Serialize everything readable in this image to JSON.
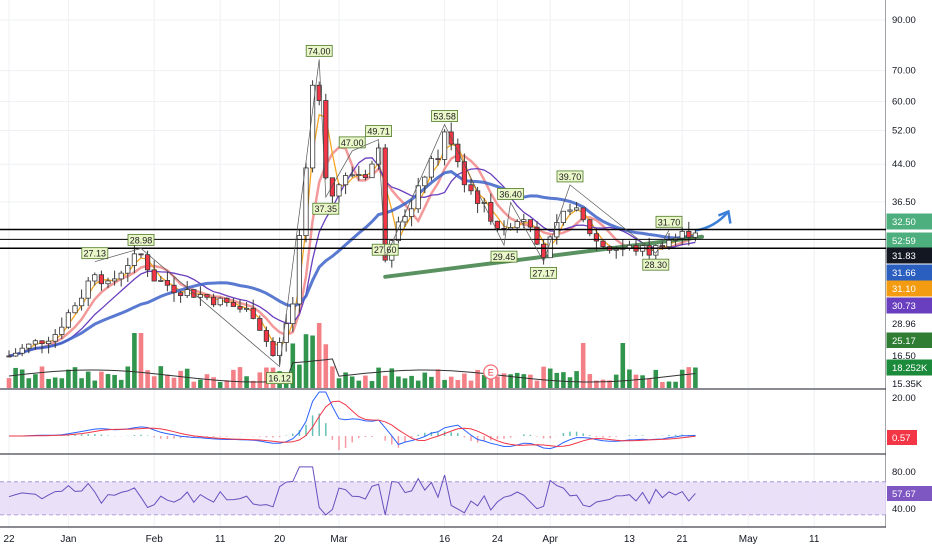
{
  "chart_data": {
    "type": "candlestick",
    "log_scale": true,
    "ylim": [
      14.5,
      100
    ],
    "x_tick_labels": [
      "22",
      "Jan",
      "Feb",
      "11",
      "20",
      "Mar",
      "16",
      "24",
      "Apr",
      "13",
      "21",
      "May",
      "11"
    ],
    "x_tick_days": [
      -9,
      0,
      13,
      23,
      32,
      41,
      57,
      65,
      73,
      85,
      93,
      103,
      113
    ],
    "y_tick_labels": [
      "90.00",
      "70.00",
      "60.00",
      "52.00",
      "44.00",
      "36.50"
    ],
    "y_ticks": [
      90,
      70,
      60,
      52,
      44,
      36.5
    ],
    "price_tags": [
      {
        "label": "32.50",
        "value": 32.5,
        "color": "#4caf7d",
        "text_color": "#ffffff"
      },
      {
        "label": "52:59",
        "value": 30.5,
        "color": "#4caf7d",
        "text_color": "#ffffff"
      },
      {
        "label": "31.83",
        "value": 31.83,
        "color": "#131722",
        "text_color": "#ffffff"
      },
      {
        "label": "31.66",
        "value": 31.66,
        "color": "#2a5ebf",
        "text_color": "#ffffff"
      },
      {
        "label": "31.10",
        "value": 31.1,
        "color": "#f39c12",
        "text_color": "#ffffff"
      },
      {
        "label": "30.73",
        "value": 30.73,
        "color": "#6a3fbf",
        "text_color": "#ffffff"
      },
      {
        "label": "28.96",
        "value": 28.96,
        "color": "#ffffff",
        "text_color": "#131722"
      },
      {
        "label": "25.17",
        "value": 25.17,
        "color": "#2e7d32",
        "text_color": "#ffffff"
      },
      {
        "label": "16.50",
        "value": 16.5,
        "color": "#ffffff",
        "text_color": "#131722"
      },
      {
        "label": "18.252K",
        "value": 0,
        "color": "#1b8a3a",
        "text_color": "#ffffff"
      },
      {
        "label": "15.35K",
        "value": 0,
        "color": "#ffffff",
        "text_color": "#131722"
      }
    ],
    "annotations": [
      {
        "label": "27.13",
        "day": 4,
        "value": 27.13
      },
      {
        "label": "28.98",
        "day": 11,
        "value": 28.98
      },
      {
        "label": "16.12",
        "day": 32,
        "value": 16.12
      },
      {
        "label": "74.00",
        "day": 38,
        "value": 74.0
      },
      {
        "label": "37.35",
        "day": 39,
        "value": 37.35
      },
      {
        "label": "47.00",
        "day": 43,
        "value": 47.0
      },
      {
        "label": "49.71",
        "day": 47,
        "value": 49.71
      },
      {
        "label": "27.60",
        "day": 48,
        "value": 27.6
      },
      {
        "label": "53.58",
        "day": 57,
        "value": 53.58
      },
      {
        "label": "36.40",
        "day": 67,
        "value": 36.4
      },
      {
        "label": "29.45",
        "day": 66,
        "value": 29.45
      },
      {
        "label": "27.17",
        "day": 72,
        "value": 27.17
      },
      {
        "label": "39.70",
        "day": 76,
        "value": 39.7
      },
      {
        "label": "31.70",
        "day": 91,
        "value": 31.7
      },
      {
        "label": "28.30",
        "day": 89,
        "value": 28.3
      }
    ],
    "earnings_marker": "E",
    "horizontal_lines": [
      31.83,
      30.3,
      29.0
    ],
    "forecast_arrow": {
      "from_day": 95,
      "from_value": 31.66,
      "to_day": 100,
      "to_value": 34.8
    },
    "green_trend": {
      "from_day": 48,
      "from_value": 25.17,
      "to_day": 96,
      "to_value": 30.7
    },
    "macd": {
      "y_tick_labels": [
        "20.00"
      ],
      "value_tag": "0.57",
      "tag_color": "#f23645"
    },
    "rsi": {
      "y_tick_labels": [
        "80.00",
        "40.00"
      ],
      "value_tag": "57.67",
      "tag_color": "#7e57c2",
      "band": [
        30,
        70
      ]
    },
    "colors": {
      "up": "#1b8a3a",
      "down": "#f23645",
      "ma_orange": "#f5a623",
      "ma_blue": "#3d63c9",
      "ma_purple": "#6a3fbf",
      "ma_red": "#f08080",
      "trend_green": "#3d7f45",
      "arrow_blue": "#3b7fd9",
      "rsi_fill": "#e6dcf7"
    }
  }
}
